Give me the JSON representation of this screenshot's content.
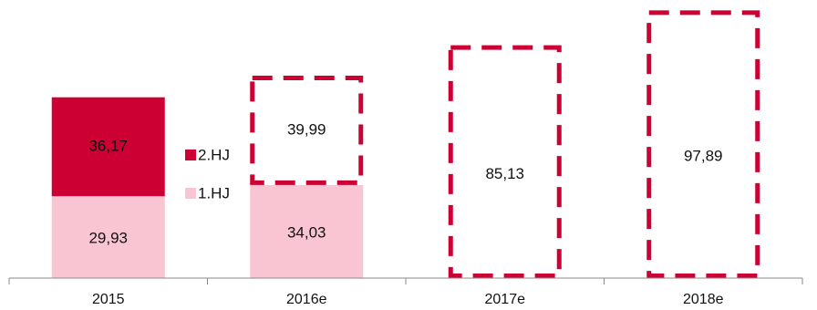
{
  "chart_data": {
    "type": "bar",
    "stacked": true,
    "categories": [
      "2015",
      "2016e",
      "2017e",
      "2018e"
    ],
    "series": [
      {
        "name": "1.HJ",
        "color": "#f9c5d2",
        "values": [
          29.93,
          34.03,
          null,
          null
        ],
        "labels": [
          "29,93",
          "34,03",
          "",
          ""
        ]
      },
      {
        "name": "2.HJ",
        "color": "#cc0033",
        "values": [
          36.17,
          39.99,
          null,
          null
        ],
        "labels": [
          "36,17",
          "39,99",
          "",
          ""
        ],
        "dashed_outline": [
          false,
          true,
          false,
          false
        ]
      }
    ],
    "totals_estimate": {
      "values": [
        null,
        null,
        85.13,
        97.89
      ],
      "labels": [
        "",
        "",
        "85,13",
        "97,89"
      ],
      "style": "dashed-outline"
    },
    "dashed_outline_color": "#cc0033",
    "ylim": [
      0,
      100
    ],
    "legend": {
      "placement": "inside-left",
      "entries": [
        "2.HJ",
        "1.HJ"
      ]
    },
    "grid": false,
    "title": "",
    "xlabel": "",
    "ylabel": ""
  }
}
